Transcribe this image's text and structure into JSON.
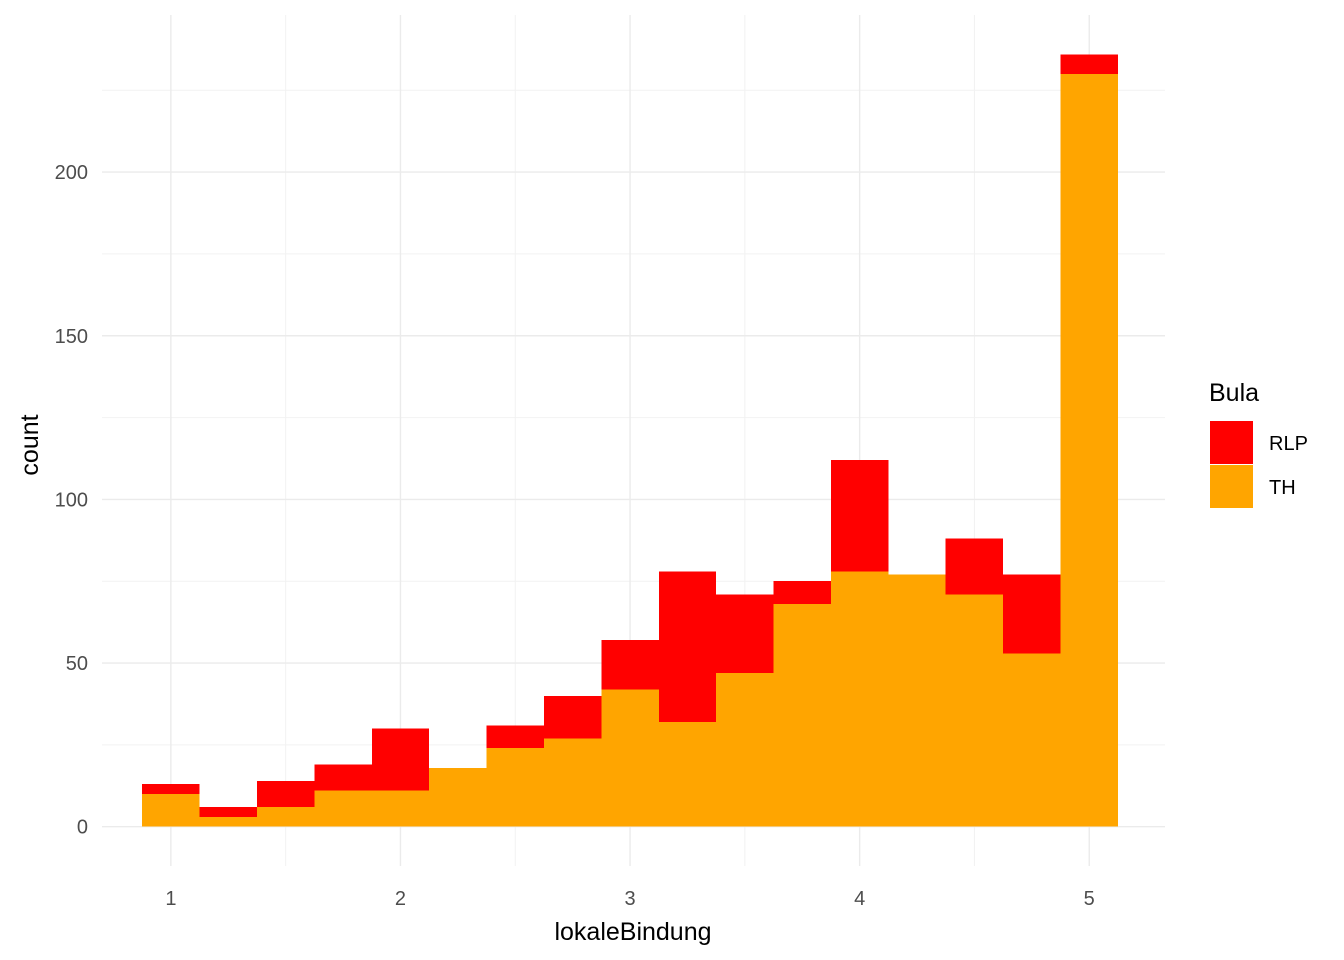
{
  "chart_data": {
    "type": "bar",
    "stacked": true,
    "xlabel": "lokaleBindung",
    "ylabel": "count",
    "x_ticks": [
      1,
      2,
      3,
      4,
      5
    ],
    "y_ticks": [
      0,
      50,
      100,
      150,
      200
    ],
    "xlim": [
      0.7,
      5.33
    ],
    "ylim": [
      -12,
      248
    ],
    "grid": true,
    "bins": [
      {
        "x0": 0.875,
        "x1": 1.125
      },
      {
        "x0": 1.125,
        "x1": 1.375
      },
      {
        "x0": 1.375,
        "x1": 1.625
      },
      {
        "x0": 1.625,
        "x1": 1.875
      },
      {
        "x0": 1.875,
        "x1": 2.125
      },
      {
        "x0": 2.125,
        "x1": 2.375
      },
      {
        "x0": 2.375,
        "x1": 2.625
      },
      {
        "x0": 2.625,
        "x1": 2.875
      },
      {
        "x0": 2.875,
        "x1": 3.125
      },
      {
        "x0": 3.125,
        "x1": 3.375
      },
      {
        "x0": 3.375,
        "x1": 3.625
      },
      {
        "x0": 3.625,
        "x1": 3.875
      },
      {
        "x0": 3.875,
        "x1": 4.125
      },
      {
        "x0": 4.125,
        "x1": 4.375
      },
      {
        "x0": 4.375,
        "x1": 4.625
      },
      {
        "x0": 4.625,
        "x1": 4.875
      },
      {
        "x0": 4.875,
        "x1": 5.125
      }
    ],
    "series": [
      {
        "name": "TH",
        "color": "#ffa500",
        "values": [
          10,
          3,
          6,
          11,
          11,
          18,
          24,
          27,
          42,
          32,
          47,
          68,
          78,
          77,
          71,
          53,
          230
        ]
      },
      {
        "name": "RLP",
        "color": "#ff0000",
        "values": [
          3,
          3,
          8,
          8,
          19,
          0,
          7,
          13,
          15,
          46,
          24,
          7,
          34,
          0,
          17,
          24,
          6
        ]
      }
    ],
    "legend": {
      "title": "Bula",
      "position": "right",
      "entries": [
        {
          "label": "RLP",
          "color": "#ff0000"
        },
        {
          "label": "TH",
          "color": "#ffa500"
        }
      ]
    }
  }
}
